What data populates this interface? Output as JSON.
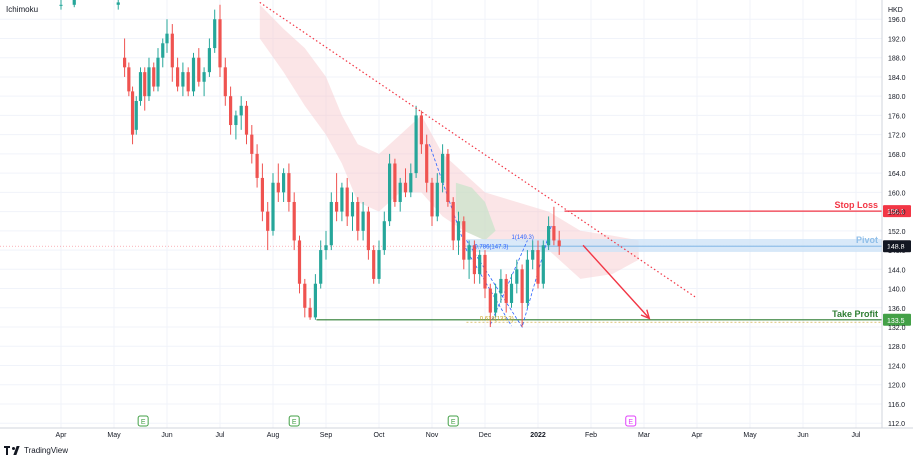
{
  "header": {
    "indicator_label": "Ichimoku",
    "currency": "HKD"
  },
  "footer": {
    "brand": "TradingView"
  },
  "chart_data": {
    "type": "candlestick",
    "grid": true,
    "y_axis": {
      "range": [
        111,
        200
      ],
      "ticks": [
        "196.0",
        "192.0",
        "188.0",
        "184.0",
        "180.0",
        "176.0",
        "172.0",
        "168.0",
        "164.0",
        "160.0",
        "156.0",
        "152.0",
        "148.0",
        "144.0",
        "140.0",
        "136.0",
        "132.0",
        "128.0",
        "124.0",
        "120.0",
        "116.0",
        "112.0"
      ],
      "tick_values": [
        196,
        192,
        188,
        184,
        180,
        176,
        172,
        168,
        164,
        160,
        156,
        152,
        148,
        144,
        140,
        136,
        132,
        128,
        124,
        120,
        116,
        112
      ]
    },
    "x_axis": {
      "ticks": [
        {
          "label": "Apr",
          "month": 0
        },
        {
          "label": "May",
          "month": 1
        },
        {
          "label": "Jun",
          "month": 2
        },
        {
          "label": "Jul",
          "month": 3
        },
        {
          "label": "Aug",
          "month": 4
        },
        {
          "label": "Sep",
          "month": 5
        },
        {
          "label": "Oct",
          "month": 6
        },
        {
          "label": "Nov",
          "month": 7
        },
        {
          "label": "Dec",
          "month": 8
        },
        {
          "label": "2022",
          "month": 9,
          "bold": true
        },
        {
          "label": "Feb",
          "month": 10
        },
        {
          "label": "Mar",
          "month": 11
        },
        {
          "label": "Apr",
          "month": 12
        },
        {
          "label": "May",
          "month": 13
        },
        {
          "label": "Jun",
          "month": 14
        },
        {
          "label": "Jul",
          "month": 15
        }
      ]
    },
    "price_badges": [
      {
        "label": "156.1",
        "value": 156.1,
        "color": "#f23645"
      },
      {
        "label": "148.8",
        "value": 148.8,
        "color": "#131722"
      },
      {
        "label": "133.5",
        "value": 133.5,
        "color": "#43a047"
      }
    ],
    "levels": [
      {
        "name": "Stop Loss",
        "value": 156.1,
        "color": "#f23645",
        "from_month": 9.5
      },
      {
        "name": "Pivot",
        "value": 148.8,
        "color": "#90bfe9",
        "from_month": 7.65
      },
      {
        "name": "Take Profit",
        "value": 133.5,
        "color": "#2e7d32",
        "from_month": 4.82
      }
    ],
    "annotations": [
      {
        "text": "1(149.3)",
        "month": 8.5,
        "value": 150.3
      },
      {
        "text": "0.786(147.3)",
        "month": 7.8,
        "value": 148.3
      },
      {
        "text": "0.618(133.3)",
        "month": 7.9,
        "value": 133.4
      }
    ],
    "earnings_markers": [
      {
        "label": "E",
        "month": 1.55,
        "color": "#43a047"
      },
      {
        "label": "E",
        "month": 4.4,
        "color": "#43a047"
      },
      {
        "label": "E",
        "month": 7.4,
        "color": "#43a047"
      },
      {
        "label": "E",
        "month": 10.75,
        "color": "#e040fb"
      }
    ],
    "trendline": {
      "from": {
        "month": 3.75,
        "value": 199.5
      },
      "to": {
        "month": 12.0,
        "value": 138.0
      },
      "color": "#f23645"
    },
    "projection_arrow": {
      "from": {
        "month": 9.85,
        "value": 149
      },
      "to": {
        "month": 11.1,
        "value": 133.8
      },
      "color": "#f23645"
    },
    "candles": [
      {
        "m": 0.0,
        "o": 199,
        "h": 201,
        "c": 199,
        "l": 198
      },
      {
        "m": 0.25,
        "o": 199,
        "h": 200.5,
        "c": 200,
        "l": 198.5
      },
      {
        "m": 1.08,
        "o": 199,
        "h": 201,
        "c": 199.5,
        "l": 198
      },
      {
        "m": 1.2,
        "o": 188,
        "h": 192,
        "c": 186,
        "l": 184
      },
      {
        "m": 1.28,
        "o": 186,
        "h": 187,
        "c": 181,
        "l": 180
      },
      {
        "m": 1.35,
        "o": 181,
        "h": 182,
        "c": 172,
        "l": 170
      },
      {
        "m": 1.42,
        "o": 173,
        "h": 180,
        "c": 179,
        "l": 172
      },
      {
        "m": 1.5,
        "o": 179,
        "h": 186,
        "c": 185,
        "l": 178
      },
      {
        "m": 1.58,
        "o": 185,
        "h": 186,
        "c": 180,
        "l": 177
      },
      {
        "m": 1.66,
        "o": 180,
        "h": 188,
        "c": 186,
        "l": 179
      },
      {
        "m": 1.75,
        "o": 186,
        "h": 187,
        "c": 182,
        "l": 181
      },
      {
        "m": 1.83,
        "o": 182,
        "h": 190,
        "c": 188,
        "l": 181
      },
      {
        "m": 1.92,
        "o": 188,
        "h": 192,
        "c": 191,
        "l": 186
      },
      {
        "m": 2.0,
        "o": 191,
        "h": 196,
        "c": 193,
        "l": 189
      },
      {
        "m": 2.1,
        "o": 193,
        "h": 195,
        "c": 186,
        "l": 183
      },
      {
        "m": 2.2,
        "o": 186,
        "h": 188,
        "c": 182,
        "l": 181
      },
      {
        "m": 2.3,
        "o": 182,
        "h": 187,
        "c": 185,
        "l": 180
      },
      {
        "m": 2.4,
        "o": 185,
        "h": 186,
        "c": 181,
        "l": 180
      },
      {
        "m": 2.5,
        "o": 181,
        "h": 189,
        "c": 188,
        "l": 180
      },
      {
        "m": 2.6,
        "o": 188,
        "h": 190,
        "c": 183,
        "l": 182
      },
      {
        "m": 2.7,
        "o": 183,
        "h": 186,
        "c": 185,
        "l": 180
      },
      {
        "m": 2.8,
        "o": 185,
        "h": 192,
        "c": 190,
        "l": 184
      },
      {
        "m": 2.9,
        "o": 190,
        "h": 198,
        "c": 196,
        "l": 189
      },
      {
        "m": 3.0,
        "o": 196,
        "h": 199,
        "c": 186,
        "l": 184
      },
      {
        "m": 3.1,
        "o": 186,
        "h": 188,
        "c": 180,
        "l": 178
      },
      {
        "m": 3.2,
        "o": 180,
        "h": 182,
        "c": 174,
        "l": 172
      },
      {
        "m": 3.3,
        "o": 174,
        "h": 177,
        "c": 176,
        "l": 171
      },
      {
        "m": 3.4,
        "o": 176,
        "h": 180,
        "c": 178,
        "l": 173
      },
      {
        "m": 3.5,
        "o": 178,
        "h": 179,
        "c": 172,
        "l": 170
      },
      {
        "m": 3.6,
        "o": 172,
        "h": 174,
        "c": 168,
        "l": 166
      },
      {
        "m": 3.7,
        "o": 168,
        "h": 170,
        "c": 163,
        "l": 161
      },
      {
        "m": 3.8,
        "o": 163,
        "h": 166,
        "c": 156,
        "l": 154
      },
      {
        "m": 3.9,
        "o": 156,
        "h": 158,
        "c": 152,
        "l": 148
      },
      {
        "m": 4.0,
        "o": 152,
        "h": 164,
        "c": 162,
        "l": 151
      },
      {
        "m": 4.1,
        "o": 162,
        "h": 166,
        "c": 160,
        "l": 158
      },
      {
        "m": 4.2,
        "o": 160,
        "h": 165,
        "c": 164,
        "l": 158
      },
      {
        "m": 4.3,
        "o": 164,
        "h": 166,
        "c": 158,
        "l": 156
      },
      {
        "m": 4.4,
        "o": 158,
        "h": 160,
        "c": 150,
        "l": 148
      },
      {
        "m": 4.5,
        "o": 150,
        "h": 151,
        "c": 141,
        "l": 139
      },
      {
        "m": 4.6,
        "o": 141,
        "h": 142,
        "c": 136,
        "l": 134
      },
      {
        "m": 4.7,
        "o": 136,
        "h": 138,
        "c": 134,
        "l": 133.5
      },
      {
        "m": 4.8,
        "o": 134,
        "h": 143,
        "c": 141,
        "l": 133.5
      },
      {
        "m": 4.9,
        "o": 141,
        "h": 150,
        "c": 148,
        "l": 140
      },
      {
        "m": 5.0,
        "o": 148,
        "h": 152,
        "c": 149,
        "l": 146
      },
      {
        "m": 5.1,
        "o": 149,
        "h": 160,
        "c": 158,
        "l": 148
      },
      {
        "m": 5.2,
        "o": 158,
        "h": 164,
        "c": 156,
        "l": 154
      },
      {
        "m": 5.3,
        "o": 156,
        "h": 162,
        "c": 161,
        "l": 154
      },
      {
        "m": 5.4,
        "o": 161,
        "h": 163,
        "c": 155,
        "l": 153
      },
      {
        "m": 5.5,
        "o": 155,
        "h": 160,
        "c": 158,
        "l": 152
      },
      {
        "m": 5.6,
        "o": 158,
        "h": 159,
        "c": 152,
        "l": 150
      },
      {
        "m": 5.7,
        "o": 152,
        "h": 158,
        "c": 156,
        "l": 150
      },
      {
        "m": 5.8,
        "o": 156,
        "h": 157,
        "c": 148,
        "l": 146
      },
      {
        "m": 5.9,
        "o": 148,
        "h": 149,
        "c": 142,
        "l": 141
      },
      {
        "m": 6.0,
        "o": 142,
        "h": 150,
        "c": 148,
        "l": 141
      },
      {
        "m": 6.1,
        "o": 148,
        "h": 156,
        "c": 154,
        "l": 147
      },
      {
        "m": 6.2,
        "o": 154,
        "h": 168,
        "c": 166,
        "l": 153
      },
      {
        "m": 6.3,
        "o": 166,
        "h": 167,
        "c": 158,
        "l": 157
      },
      {
        "m": 6.4,
        "o": 158,
        "h": 163,
        "c": 162,
        "l": 156
      },
      {
        "m": 6.5,
        "o": 162,
        "h": 165,
        "c": 160,
        "l": 159
      },
      {
        "m": 6.6,
        "o": 160,
        "h": 166,
        "c": 164,
        "l": 159
      },
      {
        "m": 6.7,
        "o": 164,
        "h": 178,
        "c": 176,
        "l": 163
      },
      {
        "m": 6.8,
        "o": 176,
        "h": 177,
        "c": 170,
        "l": 168
      },
      {
        "m": 6.9,
        "o": 170,
        "h": 172,
        "c": 162,
        "l": 160
      },
      {
        "m": 7.0,
        "o": 162,
        "h": 163,
        "c": 155,
        "l": 153
      },
      {
        "m": 7.1,
        "o": 155,
        "h": 164,
        "c": 162,
        "l": 154
      },
      {
        "m": 7.2,
        "o": 162,
        "h": 170,
        "c": 168,
        "l": 160
      },
      {
        "m": 7.3,
        "o": 168,
        "h": 169,
        "c": 158,
        "l": 157
      },
      {
        "m": 7.4,
        "o": 158,
        "h": 159,
        "c": 150,
        "l": 148
      },
      {
        "m": 7.5,
        "o": 150,
        "h": 156,
        "c": 154,
        "l": 147
      },
      {
        "m": 7.6,
        "o": 154,
        "h": 155,
        "c": 146,
        "l": 144
      },
      {
        "m": 7.7,
        "o": 146,
        "h": 150,
        "c": 149,
        "l": 142
      },
      {
        "m": 7.8,
        "o": 149,
        "h": 150,
        "c": 143,
        "l": 141
      },
      {
        "m": 7.9,
        "o": 143,
        "h": 148,
        "c": 147,
        "l": 141
      },
      {
        "m": 8.0,
        "o": 147,
        "h": 148,
        "c": 140,
        "l": 138
      },
      {
        "m": 8.1,
        "o": 140,
        "h": 141,
        "c": 135,
        "l": 132
      },
      {
        "m": 8.2,
        "o": 135,
        "h": 141,
        "c": 139,
        "l": 134
      },
      {
        "m": 8.3,
        "o": 139,
        "h": 144,
        "c": 142,
        "l": 137
      },
      {
        "m": 8.4,
        "o": 142,
        "h": 143,
        "c": 137,
        "l": 135
      },
      {
        "m": 8.5,
        "o": 137,
        "h": 143,
        "c": 141,
        "l": 136
      },
      {
        "m": 8.6,
        "o": 141,
        "h": 146,
        "c": 144,
        "l": 139
      },
      {
        "m": 8.7,
        "o": 144,
        "h": 145,
        "c": 137,
        "l": 132
      },
      {
        "m": 8.8,
        "o": 137,
        "h": 148,
        "c": 146,
        "l": 136
      },
      {
        "m": 8.9,
        "o": 146,
        "h": 150,
        "c": 148,
        "l": 144
      },
      {
        "m": 9.0,
        "o": 148,
        "h": 150,
        "c": 141,
        "l": 140
      },
      {
        "m": 9.1,
        "o": 141,
        "h": 150,
        "c": 149,
        "l": 140
      },
      {
        "m": 9.2,
        "o": 149,
        "h": 155,
        "c": 153,
        "l": 148
      },
      {
        "m": 9.3,
        "o": 153,
        "h": 157,
        "c": 150,
        "l": 149
      },
      {
        "m": 9.4,
        "o": 150,
        "h": 152,
        "c": 148.8,
        "l": 147
      }
    ]
  }
}
